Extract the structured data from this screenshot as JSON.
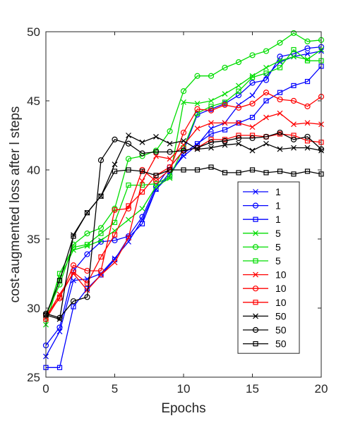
{
  "chart_data": {
    "type": "line",
    "title": "",
    "xlabel": "Epochs",
    "ylabel": "cost-augmented loss after l steps",
    "xlim": [
      0,
      20
    ],
    "ylim": [
      25,
      50
    ],
    "xticks": [
      0,
      5,
      10,
      15,
      20
    ],
    "yticks": [
      25,
      30,
      35,
      40,
      45,
      50
    ],
    "grid": false,
    "legend_position": "lower-right",
    "x": [
      0,
      1,
      2,
      3,
      4,
      5,
      6,
      7,
      8,
      9,
      10,
      11,
      12,
      13,
      14,
      15,
      16,
      17,
      18,
      19,
      20
    ],
    "series": [
      {
        "name": "1",
        "color": "#0000ff",
        "marker": "x",
        "values": [
          26.5,
          28.3,
          32.0,
          32.1,
          32.5,
          33.6,
          34.8,
          36.4,
          38.6,
          39.8,
          41.0,
          41.8,
          43.0,
          43.4,
          44.7,
          45.4,
          46.8,
          47.8,
          48.2,
          48.4,
          48.6
        ]
      },
      {
        "name": "1",
        "color": "#0000ff",
        "marker": "o",
        "values": [
          27.3,
          28.6,
          32.7,
          33.9,
          34.8,
          34.9,
          35.2,
          36.6,
          38.8,
          40.2,
          41.4,
          44.0,
          44.4,
          44.8,
          45.4,
          46.3,
          46.5,
          48.2,
          48.4,
          48.8,
          48.9
        ]
      },
      {
        "name": "1",
        "color": "#0000ff",
        "marker": "s",
        "values": [
          25.7,
          25.7,
          30.1,
          31.4,
          32.4,
          33.5,
          35.1,
          36.1,
          38.6,
          39.6,
          41.2,
          41.9,
          42.6,
          42.9,
          43.4,
          43.8,
          45.0,
          45.6,
          46.1,
          46.4,
          47.5
        ]
      },
      {
        "name": "5",
        "color": "#00dd00",
        "marker": "x",
        "values": [
          28.8,
          32.2,
          34.2,
          34.5,
          34.9,
          35.6,
          36.4,
          37.2,
          38.8,
          39.4,
          44.9,
          44.8,
          45.0,
          45.5,
          46.1,
          46.8,
          47.4,
          47.9,
          48.2,
          48.0,
          48.7
        ]
      },
      {
        "name": "5",
        "color": "#00dd00",
        "marker": "o",
        "values": [
          29.5,
          31.7,
          34.6,
          35.4,
          35.8,
          37.2,
          40.8,
          41.0,
          41.4,
          42.8,
          45.7,
          46.8,
          46.8,
          47.4,
          47.8,
          48.3,
          48.6,
          49.2,
          49.9,
          49.3,
          49.4
        ]
      },
      {
        "name": "5",
        "color": "#00dd00",
        "marker": "s",
        "values": [
          29.2,
          32.5,
          34.4,
          34.6,
          35.4,
          36.2,
          38.9,
          38.9,
          39.0,
          39.5,
          41.6,
          44.1,
          44.6,
          44.9,
          45.7,
          46.7,
          47.0,
          47.4,
          48.7,
          47.9,
          47.9
        ]
      },
      {
        "name": "10",
        "color": "#ff0000",
        "marker": "x",
        "values": [
          29.3,
          31.0,
          32.5,
          31.3,
          32.4,
          33.3,
          35.1,
          39.2,
          41.0,
          40.8,
          41.8,
          43.0,
          43.4,
          43.4,
          43.4,
          43.1,
          43.8,
          44.1,
          43.3,
          43.4,
          43.3
        ]
      },
      {
        "name": "10",
        "color": "#ff0000",
        "marker": "o",
        "values": [
          29.5,
          30.7,
          33.1,
          32.7,
          32.7,
          37.1,
          37.2,
          40.0,
          39.2,
          40.0,
          42.7,
          44.4,
          44.3,
          44.7,
          44.5,
          44.8,
          45.6,
          45.1,
          45.0,
          44.6,
          45.3
        ]
      },
      {
        "name": "10",
        "color": "#ff0000",
        "marker": "s",
        "values": [
          29.2,
          30.8,
          32.6,
          31.8,
          33.7,
          35.3,
          37.4,
          38.4,
          39.6,
          40.2,
          41.4,
          41.6,
          42.2,
          42.2,
          42.5,
          42.5,
          42.4,
          42.6,
          42.5,
          42.1,
          42.0
        ]
      },
      {
        "name": "50",
        "color": "#000000",
        "marker": "x",
        "values": [
          29.5,
          29.2,
          35.3,
          36.9,
          38.1,
          40.4,
          42.5,
          42.0,
          42.4,
          41.9,
          42.1,
          41.5,
          41.6,
          41.8,
          41.9,
          41.4,
          41.9,
          41.5,
          41.6,
          41.6,
          41.4
        ]
      },
      {
        "name": "50",
        "color": "#000000",
        "marker": "o",
        "values": [
          29.6,
          29.3,
          30.5,
          30.8,
          40.7,
          42.2,
          41.9,
          41.2,
          41.3,
          41.3,
          41.4,
          41.6,
          42.0,
          42.1,
          42.3,
          42.3,
          42.4,
          42.7,
          42.2,
          42.4,
          41.5
        ]
      },
      {
        "name": "50",
        "color": "#000000",
        "marker": "s",
        "values": [
          29.5,
          32.0,
          35.2,
          36.9,
          38.1,
          39.9,
          40.0,
          39.9,
          39.6,
          40.0,
          40.0,
          40.0,
          40.2,
          39.8,
          39.8,
          40.0,
          39.8,
          39.9,
          39.7,
          39.9,
          39.7
        ]
      }
    ]
  }
}
